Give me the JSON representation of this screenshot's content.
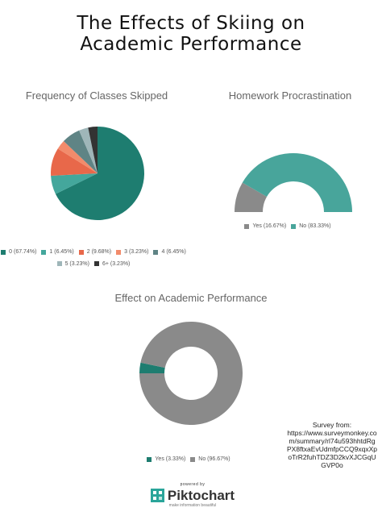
{
  "page": {
    "title_line1": "The Effects of Skiing on",
    "title_line2": "Academic Performance"
  },
  "chart_data": [
    {
      "type": "pie",
      "title": "Frequency of Classes Skipped",
      "categories": [
        "0",
        "1",
        "2",
        "3",
        "4",
        "5",
        "6+"
      ],
      "values": [
        67.74,
        6.45,
        9.68,
        3.23,
        6.45,
        3.23,
        3.23
      ],
      "legend_labels": [
        "0 (67.74%)",
        "1 (6.45%)",
        "2 (9.68%)",
        "3 (3.23%)",
        "4 (6.45%)",
        "5 (3.23%)",
        "6+ (3.23%)"
      ],
      "colors": [
        "#1e7d70",
        "#44a79c",
        "#e8684a",
        "#f28b6b",
        "#5f8485",
        "#9fb6b9",
        "#333333"
      ],
      "legend_position": "bottom"
    },
    {
      "type": "pie",
      "title": "Homework Procrastination",
      "categories": [
        "Yes",
        "No"
      ],
      "values": [
        16.67,
        83.33
      ],
      "legend_labels": [
        "Yes (16.67%)",
        "No (83.33%)"
      ],
      "colors": [
        "#8a8a8a",
        "#48a59b"
      ],
      "legend_position": "bottom"
    },
    {
      "type": "pie",
      "title": "Effect on Academic Performance",
      "categories": [
        "Yes",
        "No"
      ],
      "values": [
        3.33,
        96.67
      ],
      "legend_labels": [
        "Yes (3.33%)",
        "No (96.67%)"
      ],
      "colors": [
        "#1e7d70",
        "#8a8a8a"
      ],
      "legend_position": "bottom"
    }
  ],
  "source": {
    "label": "Survey from:",
    "url": "https://www.surveymonkey.com/summary/rl74u593hhtdRgPX8ftxaEvUdmfpCCQ9xqxXpoTrR2fuhTDZ3D2kvXJCGqUGVP0o"
  },
  "branding": {
    "powered_by": "powered by",
    "name": "Piktochart",
    "tagline": "make information beautiful"
  }
}
